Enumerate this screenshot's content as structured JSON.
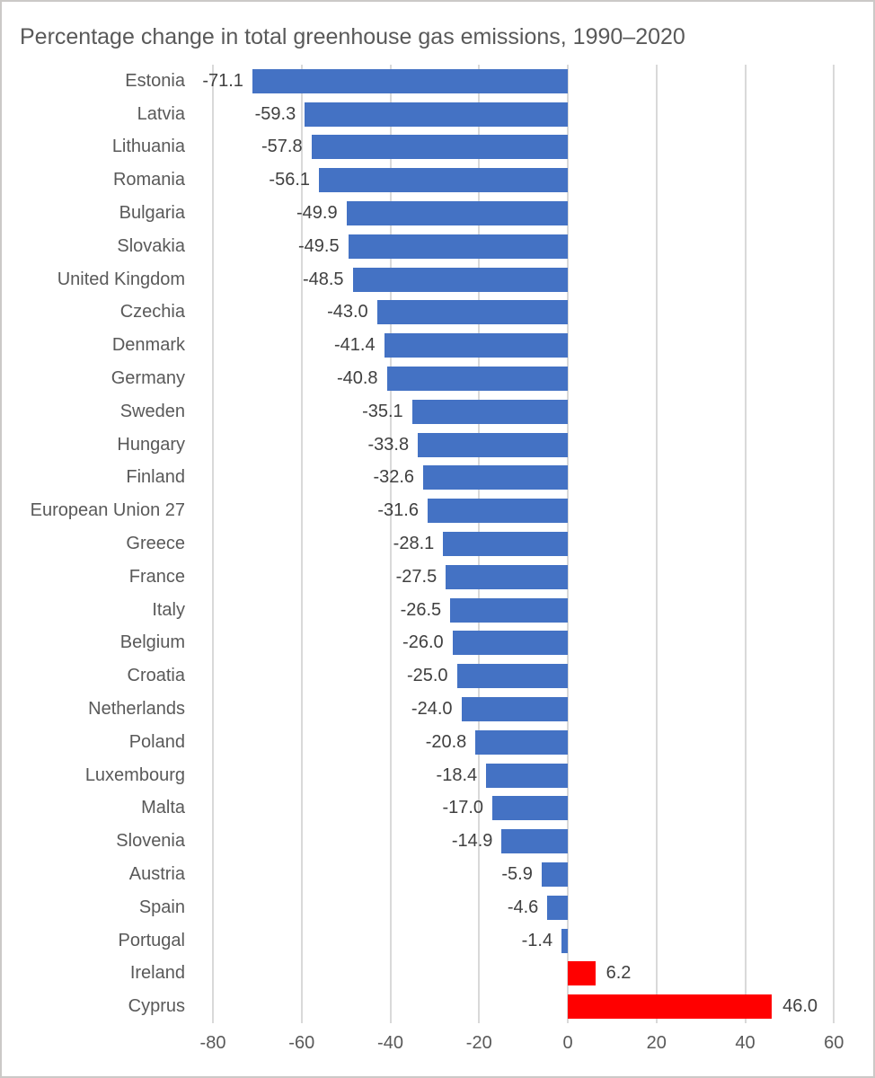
{
  "frame": {
    "background": "#FFFFFF",
    "border_color": "#CBC9C7"
  },
  "chart_data": {
    "type": "bar",
    "orientation": "horizontal",
    "title": "Percentage change in total greenhouse gas emissions, 1990–2020",
    "categories": [
      "Estonia",
      "Latvia",
      "Lithuania",
      "Romania",
      "Bulgaria",
      "Slovakia",
      "United Kingdom",
      "Czechia",
      "Denmark",
      "Germany",
      "Sweden",
      "Hungary",
      "Finland",
      "European Union 27",
      "Greece",
      "France",
      "Italy",
      "Belgium",
      "Croatia",
      "Netherlands",
      "Poland",
      "Luxembourg",
      "Malta",
      "Slovenia",
      "Austria",
      "Spain",
      "Portugal",
      "Ireland",
      "Cyprus"
    ],
    "values": [
      -71.1,
      -59.3,
      -57.8,
      -56.1,
      -49.9,
      -49.5,
      -48.5,
      -43.0,
      -41.4,
      -40.8,
      -35.1,
      -33.8,
      -32.6,
      -31.6,
      -28.1,
      -27.5,
      -26.5,
      -26.0,
      -25.0,
      -24.0,
      -20.8,
      -18.4,
      -17.0,
      -14.9,
      -5.9,
      -4.6,
      -1.4,
      6.2,
      46.0
    ],
    "value_labels": [
      "-71.1",
      "-59.3",
      "-57.8",
      "-56.1",
      "-49.9",
      "-49.5",
      "-48.5",
      "-43.0",
      "-41.4",
      "-40.8",
      "-35.1",
      "-33.8",
      "-32.6",
      "-31.6",
      "-28.1",
      "-27.5",
      "-26.5",
      "-26.0",
      "-25.0",
      "-24.0",
      "-20.8",
      "-18.4",
      "-17.0",
      "-14.9",
      "-5.9",
      "-4.6",
      "-1.4",
      "6.2",
      "46.0"
    ],
    "x_ticks": [
      "-80",
      "-60",
      "-40",
      "-20",
      "0",
      "20",
      "40",
      "60"
    ],
    "x_tick_values": [
      -80,
      -60,
      -40,
      -20,
      0,
      20,
      40,
      60
    ],
    "xlim": [
      -80,
      60
    ],
    "grid": true,
    "legend": false,
    "data_labels": "outside-end",
    "colors": {
      "negative_bar": "#4472C4",
      "positive_bar": "#FF0000",
      "gridline": "#D9D9D9",
      "title_text": "#595959",
      "category_text": "#595959",
      "value_text": "#404040",
      "axis_text": "#595959"
    }
  }
}
